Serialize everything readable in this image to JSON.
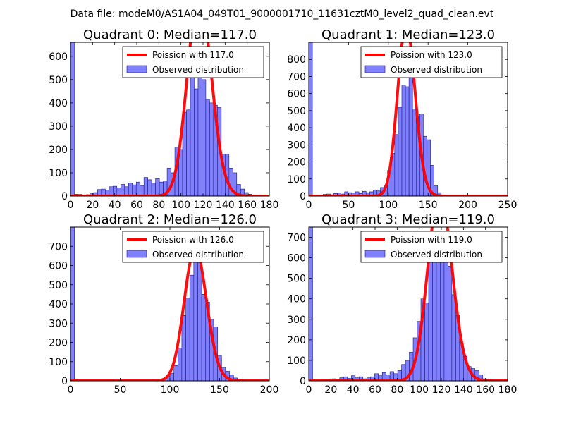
{
  "figure_title": "Data file: modeM0/AS1A04_049T01_9000001710_11631cztM0_level2_quad_clean.evt",
  "colors": {
    "bar_fill": "#8080ff",
    "bar_edge": "#1a1a80",
    "poisson": "#ff0000"
  },
  "chart_data": [
    {
      "type": "bar",
      "title": "Quadrant 0: Median=117.0",
      "median": 117.0,
      "xlim": [
        0,
        180
      ],
      "ylim": [
        0,
        660
      ],
      "xticks": [
        0,
        20,
        40,
        60,
        80,
        100,
        120,
        140,
        160,
        180
      ],
      "yticks": [
        0,
        100,
        200,
        300,
        400,
        500,
        600
      ],
      "bin_width": 3.5,
      "bins": [
        {
          "x": 0,
          "h": 660
        },
        {
          "x": 3.5,
          "h": 8
        },
        {
          "x": 7,
          "h": 7
        },
        {
          "x": 10.5,
          "h": 5
        },
        {
          "x": 14,
          "h": 6
        },
        {
          "x": 17.5,
          "h": 10
        },
        {
          "x": 21,
          "h": 15
        },
        {
          "x": 24.5,
          "h": 28
        },
        {
          "x": 28,
          "h": 30
        },
        {
          "x": 31.5,
          "h": 25
        },
        {
          "x": 35,
          "h": 40
        },
        {
          "x": 38.5,
          "h": 42
        },
        {
          "x": 42,
          "h": 35
        },
        {
          "x": 45.5,
          "h": 50
        },
        {
          "x": 49,
          "h": 40
        },
        {
          "x": 52.5,
          "h": 55
        },
        {
          "x": 56,
          "h": 48
        },
        {
          "x": 59.5,
          "h": 60
        },
        {
          "x": 63,
          "h": 45
        },
        {
          "x": 66.5,
          "h": 80
        },
        {
          "x": 70,
          "h": 70
        },
        {
          "x": 73.5,
          "h": 55
        },
        {
          "x": 77,
          "h": 75
        },
        {
          "x": 80.5,
          "h": 60
        },
        {
          "x": 84,
          "h": 65
        },
        {
          "x": 87.5,
          "h": 120
        },
        {
          "x": 91,
          "h": 100
        },
        {
          "x": 94.5,
          "h": 210
        },
        {
          "x": 98,
          "h": 200
        },
        {
          "x": 101.5,
          "h": 360
        },
        {
          "x": 105,
          "h": 370
        },
        {
          "x": 108.5,
          "h": 550
        },
        {
          "x": 112,
          "h": 460
        },
        {
          "x": 115.5,
          "h": 600
        },
        {
          "x": 119,
          "h": 500
        },
        {
          "x": 122.5,
          "h": 415
        },
        {
          "x": 126,
          "h": 400
        },
        {
          "x": 129.5,
          "h": 390
        },
        {
          "x": 133,
          "h": 380
        },
        {
          "x": 136.5,
          "h": 180
        },
        {
          "x": 140,
          "h": 180
        },
        {
          "x": 143.5,
          "h": 120
        },
        {
          "x": 147,
          "h": 100
        },
        {
          "x": 150.5,
          "h": 50
        },
        {
          "x": 154,
          "h": 30
        },
        {
          "x": 157.5,
          "h": 15
        },
        {
          "x": 161,
          "h": 8
        },
        {
          "x": 164.5,
          "h": 3
        },
        {
          "x": 168,
          "h": 1
        }
      ],
      "legend": {
        "line": "Poission with 117.0",
        "bars": "Observed distribution",
        "loc": "upper right"
      }
    },
    {
      "type": "bar",
      "title": "Quadrant 1: Median=123.0",
      "median": 123.0,
      "xlim": [
        0,
        250
      ],
      "ylim": [
        0,
        900
      ],
      "xticks": [
        0,
        50,
        100,
        150,
        200,
        250
      ],
      "yticks": [
        0,
        100,
        200,
        300,
        400,
        500,
        600,
        700,
        800
      ],
      "bin_width": 4.5,
      "bins": [
        {
          "x": 0,
          "h": 900
        },
        {
          "x": 18,
          "h": 10
        },
        {
          "x": 22.5,
          "h": 12
        },
        {
          "x": 27,
          "h": 8
        },
        {
          "x": 31.5,
          "h": 15
        },
        {
          "x": 36,
          "h": 18
        },
        {
          "x": 40.5,
          "h": 12
        },
        {
          "x": 45,
          "h": 25
        },
        {
          "x": 49.5,
          "h": 20
        },
        {
          "x": 54,
          "h": 18
        },
        {
          "x": 58.5,
          "h": 25
        },
        {
          "x": 63,
          "h": 15
        },
        {
          "x": 67.5,
          "h": 28
        },
        {
          "x": 72,
          "h": 20
        },
        {
          "x": 76.5,
          "h": 25
        },
        {
          "x": 81,
          "h": 35
        },
        {
          "x": 85.5,
          "h": 30
        },
        {
          "x": 90,
          "h": 50
        },
        {
          "x": 94.5,
          "h": 60
        },
        {
          "x": 99,
          "h": 150
        },
        {
          "x": 103.5,
          "h": 250
        },
        {
          "x": 108,
          "h": 360
        },
        {
          "x": 112.5,
          "h": 520
        },
        {
          "x": 117,
          "h": 650
        },
        {
          "x": 121.5,
          "h": 640
        },
        {
          "x": 126,
          "h": 760
        },
        {
          "x": 130.5,
          "h": 510
        },
        {
          "x": 135,
          "h": 470
        },
        {
          "x": 139.5,
          "h": 480
        },
        {
          "x": 144,
          "h": 350
        },
        {
          "x": 148.5,
          "h": 330
        },
        {
          "x": 153,
          "h": 180
        },
        {
          "x": 157.5,
          "h": 60
        },
        {
          "x": 162,
          "h": 20
        },
        {
          "x": 166.5,
          "h": 5
        }
      ],
      "legend": {
        "line": "Poission with 123.0",
        "bars": "Observed distribution",
        "loc": "upper right"
      }
    },
    {
      "type": "bar",
      "title": "Quadrant 2: Median=126.0",
      "median": 126.0,
      "xlim": [
        0,
        200
      ],
      "ylim": [
        0,
        800
      ],
      "xticks": [
        0,
        50,
        100,
        150,
        200
      ],
      "yticks": [
        0,
        100,
        200,
        300,
        400,
        500,
        600,
        700
      ],
      "bin_width": 4,
      "bins": [
        {
          "x": 0,
          "h": 800
        },
        {
          "x": 92,
          "h": 10
        },
        {
          "x": 96,
          "h": 25
        },
        {
          "x": 100,
          "h": 40
        },
        {
          "x": 104,
          "h": 80
        },
        {
          "x": 108,
          "h": 170
        },
        {
          "x": 112,
          "h": 340
        },
        {
          "x": 116,
          "h": 430
        },
        {
          "x": 120,
          "h": 550
        },
        {
          "x": 124,
          "h": 720
        },
        {
          "x": 128,
          "h": 700
        },
        {
          "x": 132,
          "h": 450
        },
        {
          "x": 136,
          "h": 410
        },
        {
          "x": 140,
          "h": 320
        },
        {
          "x": 144,
          "h": 280
        },
        {
          "x": 148,
          "h": 130
        },
        {
          "x": 152,
          "h": 70
        },
        {
          "x": 156,
          "h": 50
        },
        {
          "x": 160,
          "h": 30
        },
        {
          "x": 164,
          "h": 15
        },
        {
          "x": 168,
          "h": 10
        },
        {
          "x": 172,
          "h": 5
        }
      ],
      "legend": {
        "line": "Poission with 126.0",
        "bars": "Observed distribution",
        "loc": "upper right"
      }
    },
    {
      "type": "bar",
      "title": "Quadrant 3: Median=119.0",
      "median": 119.0,
      "xlim": [
        0,
        180
      ],
      "ylim": [
        0,
        750
      ],
      "xticks": [
        0,
        20,
        40,
        60,
        80,
        100,
        120,
        140,
        160,
        180
      ],
      "yticks": [
        0,
        100,
        200,
        300,
        400,
        500,
        600,
        700
      ],
      "bin_width": 3.5,
      "bins": [
        {
          "x": 0,
          "h": 750
        },
        {
          "x": 14,
          "h": 5
        },
        {
          "x": 21,
          "h": 10
        },
        {
          "x": 24.5,
          "h": 8
        },
        {
          "x": 28,
          "h": 15
        },
        {
          "x": 31.5,
          "h": 20
        },
        {
          "x": 35,
          "h": 12
        },
        {
          "x": 38.5,
          "h": 25
        },
        {
          "x": 42,
          "h": 15
        },
        {
          "x": 45.5,
          "h": 20
        },
        {
          "x": 49,
          "h": 10
        },
        {
          "x": 52.5,
          "h": 15
        },
        {
          "x": 56,
          "h": 20
        },
        {
          "x": 59.5,
          "h": 35
        },
        {
          "x": 63,
          "h": 25
        },
        {
          "x": 66.5,
          "h": 40
        },
        {
          "x": 70,
          "h": 30
        },
        {
          "x": 73.5,
          "h": 45
        },
        {
          "x": 77,
          "h": 35
        },
        {
          "x": 80.5,
          "h": 50
        },
        {
          "x": 84,
          "h": 80
        },
        {
          "x": 87.5,
          "h": 100
        },
        {
          "x": 91,
          "h": 140
        },
        {
          "x": 94.5,
          "h": 210
        },
        {
          "x": 98,
          "h": 290
        },
        {
          "x": 101.5,
          "h": 400
        },
        {
          "x": 105,
          "h": 380
        },
        {
          "x": 108.5,
          "h": 600
        },
        {
          "x": 112,
          "h": 620
        },
        {
          "x": 115.5,
          "h": 690
        },
        {
          "x": 119,
          "h": 720
        },
        {
          "x": 122.5,
          "h": 680
        },
        {
          "x": 126,
          "h": 560
        },
        {
          "x": 129.5,
          "h": 420
        },
        {
          "x": 133,
          "h": 320
        },
        {
          "x": 136.5,
          "h": 180
        },
        {
          "x": 140,
          "h": 120
        },
        {
          "x": 143.5,
          "h": 70
        },
        {
          "x": 147,
          "h": 60
        },
        {
          "x": 150.5,
          "h": 50
        },
        {
          "x": 154,
          "h": 30
        },
        {
          "x": 157.5,
          "h": 10
        },
        {
          "x": 161,
          "h": 5
        }
      ],
      "legend": {
        "line": "Poission with 119.0",
        "bars": "Observed distribution",
        "loc": "upper right"
      }
    }
  ]
}
